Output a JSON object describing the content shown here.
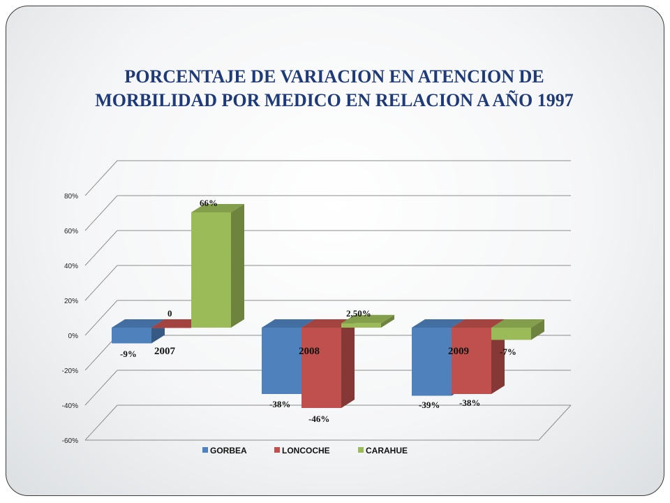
{
  "chart_data": {
    "type": "bar",
    "title": "PORCENTAJE DE VARIACION EN ATENCION DE MORBILIDAD POR MEDICO EN RELACION A AÑO 1997",
    "categories": [
      "2007",
      "2008",
      "2009"
    ],
    "series": [
      {
        "name": "GORBEA",
        "values": [
          -9,
          -38,
          -39
        ],
        "labels": [
          "-9%",
          "-38%",
          "-39%"
        ],
        "color": "#4f81bd"
      },
      {
        "name": "LONCOCHE",
        "values": [
          0,
          -46,
          -38
        ],
        "labels": [
          "0",
          "-46%",
          "-38%"
        ],
        "color": "#c0504d"
      },
      {
        "name": "CARAHUE",
        "values": [
          66,
          2.5,
          -7
        ],
        "labels": [
          "66%",
          "2,50%",
          "-7%"
        ],
        "color": "#9bbb59"
      }
    ],
    "yticks": [
      "-60%",
      "-40%",
      "-20%",
      "0%",
      "20%",
      "40%",
      "60%",
      "80%"
    ],
    "ylim": [
      -60,
      80
    ],
    "grid": true,
    "legend": "bottom",
    "style": "3d-clustered-column"
  }
}
